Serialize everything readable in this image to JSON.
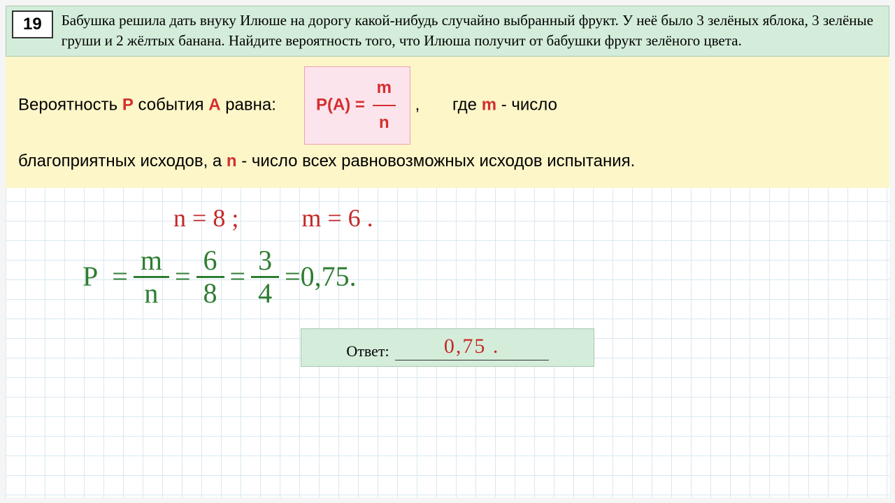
{
  "problem": {
    "number": "19",
    "text": "Бабушка решила дать внуку Илюше на дорогу какой-нибудь случайно выбранный фрукт. У неё было 3 зелёных яблока, 3 зелёные груши и 2 жёлтых банана. Найдите вероятность того, что Илюша получит от бабушки фрукт зелёного цвета."
  },
  "theory": {
    "part1": "Вероятность ",
    "p": "P",
    "part2": " события ",
    "a": "A",
    "part3": " равна:",
    "formula_lhs": "P(A) = ",
    "formula_num": "m",
    "formula_den": "n",
    "part4": ",",
    "part5": "где ",
    "m": "m",
    "part6": " - число ",
    "part7": "благоприятных исходов, а ",
    "n": "n",
    "part8": " - число всех равновозможных исходов испытания."
  },
  "solution": {
    "n_label": "n = ",
    "n_val": "8",
    "sep": " ;",
    "m_label": "m = ",
    "m_val": "6",
    "period": " .",
    "p_label": "P",
    "eq": " = ",
    "f1_num": "m",
    "f1_den": "n",
    "f2_num": "6",
    "f2_den": "8",
    "f3_num": "3",
    "f3_den": "4",
    "result": "0,75",
    "tail": " ."
  },
  "answer": {
    "label": "Ответ: ",
    "value": "0,75 ."
  },
  "colors": {
    "problem_bg": "#d4edda",
    "theory_bg": "#fdf6c9",
    "formula_bg": "#fce4ec",
    "red": "#d32f2f",
    "green_hand": "#2e7d32",
    "red_hand": "#c62828",
    "grid": "#d8e8f0"
  }
}
